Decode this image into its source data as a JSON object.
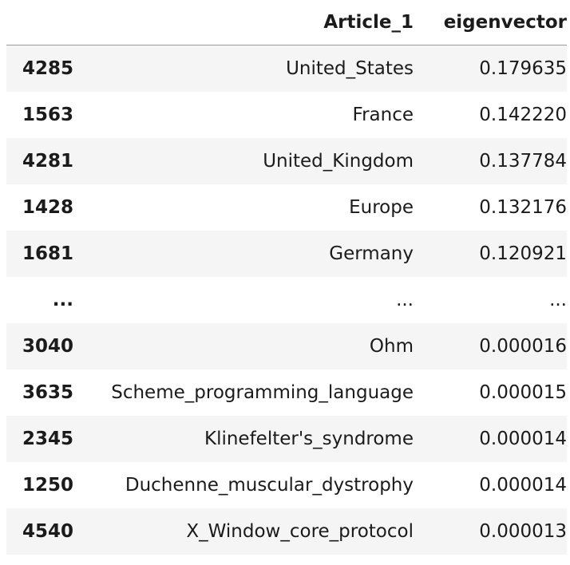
{
  "table": {
    "columns": {
      "index": "",
      "article": "Article_1",
      "eigenvector": "eigenvector"
    },
    "rows": [
      {
        "index": "4285",
        "article": "United_States",
        "eigenvector": "0.179635"
      },
      {
        "index": "1563",
        "article": "France",
        "eigenvector": "0.142220"
      },
      {
        "index": "4281",
        "article": "United_Kingdom",
        "eigenvector": "0.137784"
      },
      {
        "index": "1428",
        "article": "Europe",
        "eigenvector": "0.132176"
      },
      {
        "index": "1681",
        "article": "Germany",
        "eigenvector": "0.120921"
      },
      {
        "index": "...",
        "article": "...",
        "eigenvector": "..."
      },
      {
        "index": "3040",
        "article": "Ohm",
        "eigenvector": "0.000016"
      },
      {
        "index": "3635",
        "article": "Scheme_programming_language",
        "eigenvector": "0.000015"
      },
      {
        "index": "2345",
        "article": "Klinefelter's_syndrome",
        "eigenvector": "0.000014"
      },
      {
        "index": "1250",
        "article": "Duchenne_muscular_dystrophy",
        "eigenvector": "0.000014"
      },
      {
        "index": "4540",
        "article": "X_Window_core_protocol",
        "eigenvector": "0.000013"
      }
    ]
  }
}
